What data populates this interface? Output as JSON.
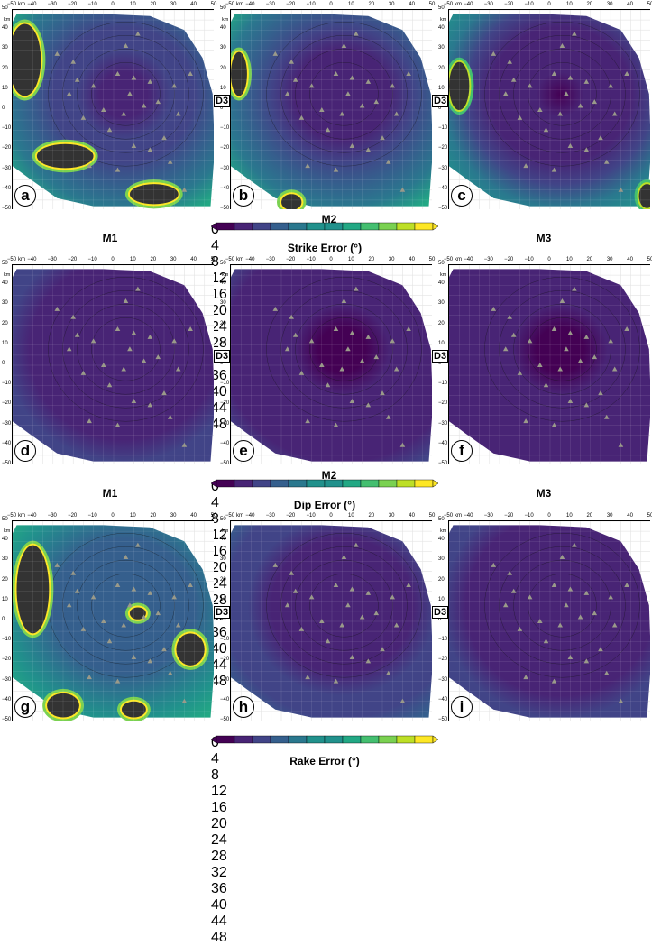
{
  "chart_data": {
    "type": "heatmap",
    "x_ticks": [
      "−50",
      "km",
      "−40",
      "−30",
      "−20",
      "−10",
      "0",
      "10",
      "20",
      "30",
      "40",
      "50"
    ],
    "x_tick_values": [
      -50,
      -40,
      -30,
      -20,
      -10,
      0,
      10,
      20,
      30,
      40,
      50
    ],
    "y_ticks": [
      "50",
      "40",
      "30",
      "20",
      "10",
      "0",
      "−10",
      "−20",
      "−30",
      "−40",
      "−50"
    ],
    "y_tick_values": [
      50,
      40,
      30,
      20,
      10,
      0,
      -10,
      -20,
      -30,
      -40,
      -50
    ],
    "y_unit": "km",
    "xlim": [
      -50,
      50
    ],
    "ylim": [
      -50,
      50
    ],
    "colormap": "viridis",
    "colorbar_range": [
      0,
      48
    ],
    "colorbar_ticks": [
      0,
      4,
      8,
      12,
      16,
      20,
      24,
      28,
      32,
      36,
      40,
      44,
      48
    ],
    "colorbar_over_color": "#333333",
    "stations": [
      [
        12,
        38
      ],
      [
        -20,
        24
      ],
      [
        -18,
        15
      ],
      [
        -22,
        8
      ],
      [
        -10,
        12
      ],
      [
        6,
        32
      ],
      [
        2,
        18
      ],
      [
        10,
        16
      ],
      [
        18,
        14
      ],
      [
        30,
        12
      ],
      [
        -5,
        0
      ],
      [
        5,
        -2
      ],
      [
        15,
        2
      ],
      [
        22,
        4
      ],
      [
        32,
        -2
      ],
      [
        -2,
        -10
      ],
      [
        10,
        -18
      ],
      [
        18,
        -20
      ],
      [
        25,
        -14
      ],
      [
        -12,
        -28
      ],
      [
        2,
        -30
      ],
      [
        28,
        -26
      ],
      [
        35,
        -40
      ],
      [
        -15,
        -4
      ],
      [
        38,
        18
      ],
      [
        8,
        8
      ],
      [
        -28,
        28
      ]
    ],
    "rows": [
      {
        "colorbar_title": "Strike Error (°)",
        "panels": [
          {
            "letter": "a",
            "model": "M1",
            "D3_label": "",
            "dark_zones": [
              {
                "cx": -44,
                "cy": 25,
                "rx": 8,
                "ry": 18
              },
              {
                "cx": -24,
                "cy": -23,
                "rx": 14,
                "ry": 6
              },
              {
                "cx": 20,
                "cy": -42,
                "rx": 12,
                "ry": 5
              }
            ],
            "peak_error": 48,
            "interior_error": 6
          },
          {
            "letter": "b",
            "model": "M2",
            "D3_label": "D3",
            "dark_zones": [
              {
                "cx": -46,
                "cy": 18,
                "rx": 4,
                "ry": 11
              },
              {
                "cx": -20,
                "cy": -46,
                "rx": 5,
                "ry": 4
              }
            ],
            "peak_error": 48,
            "interior_error": 3
          },
          {
            "letter": "c",
            "model": "M3",
            "D3_label": "D3",
            "dark_zones": [
              {
                "cx": -45,
                "cy": 12,
                "rx": 5,
                "ry": 12
              },
              {
                "cx": 48,
                "cy": -43,
                "rx": 4,
                "ry": 6
              }
            ],
            "peak_error": 44,
            "interior_error": 2
          }
        ]
      },
      {
        "colorbar_title": "Dip Error (°)",
        "panels": [
          {
            "letter": "d",
            "model": "M1",
            "D3_label": "",
            "dark_zones": [],
            "peak_error": 20,
            "interior_error": 3
          },
          {
            "letter": "e",
            "model": "M2",
            "D3_label": "D3",
            "dark_zones": [],
            "peak_error": 14,
            "interior_error": 2
          },
          {
            "letter": "f",
            "model": "M3",
            "D3_label": "D3",
            "dark_zones": [],
            "peak_error": 12,
            "interior_error": 2
          }
        ]
      },
      {
        "colorbar_title": "Rake Error (°)",
        "panels": [
          {
            "letter": "g",
            "model": "M1",
            "D3_label": "",
            "dark_zones": [
              {
                "cx": -40,
                "cy": 16,
                "rx": 8,
                "ry": 22
              },
              {
                "cx": -25,
                "cy": -42,
                "rx": 8,
                "ry": 6
              },
              {
                "cx": 12,
                "cy": 4,
                "rx": 4,
                "ry": 3
              },
              {
                "cx": 38,
                "cy": -14,
                "rx": 7,
                "ry": 8
              },
              {
                "cx": 10,
                "cy": -44,
                "rx": 6,
                "ry": 4
              }
            ],
            "peak_error": 48,
            "interior_error": 14
          },
          {
            "letter": "h",
            "model": "M2",
            "D3_label": "D3",
            "dark_zones": [],
            "peak_error": 22,
            "interior_error": 4
          },
          {
            "letter": "i",
            "model": "M3",
            "D3_label": "D3",
            "dark_zones": [],
            "peak_error": 18,
            "interior_error": 3
          }
        ]
      }
    ],
    "model_labels_between_rows": [
      "M1",
      "M2",
      "M3"
    ]
  }
}
